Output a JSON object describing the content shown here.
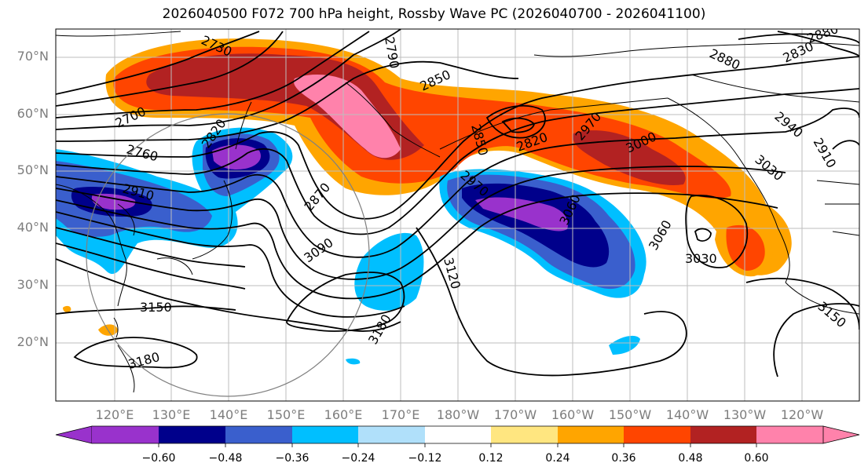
{
  "title": "2026040500 F072 700 hPa height, Rossby Wave PC (2026040700 - 2026041100)",
  "lat_labels": [
    "70°N",
    "60°N",
    "50°N",
    "40°N",
    "30°N",
    "20°N"
  ],
  "lon_labels": [
    "120°E",
    "130°E",
    "140°E",
    "150°E",
    "160°E",
    "170°E",
    "180°W",
    "170°W",
    "160°W",
    "150°W",
    "140°W",
    "130°W",
    "120°W"
  ],
  "contour_labels": [
    "2730",
    "2790",
    "2850",
    "2880",
    "2830",
    "2880",
    "2700",
    "2760",
    "2910",
    "2820",
    "2820",
    "2850",
    "2970",
    "2970",
    "3000",
    "2940",
    "2910",
    "3030",
    "2870",
    "3090",
    "3060",
    "3060",
    "3030",
    "3120",
    "3150",
    "3180",
    "3180",
    "3150"
  ],
  "colorbar": {
    "ticks": [
      "−0.60",
      "−0.48",
      "−0.36",
      "−0.24",
      "−0.12",
      "0.12",
      "0.24",
      "0.36",
      "0.48",
      "0.60"
    ],
    "colors": [
      "#9932cc",
      "#00008b",
      "#3a5fcd",
      "#00bfff",
      "#b0e0fa",
      "#ffffff",
      "#ffe680",
      "#ffa500",
      "#ff4500",
      "#b22222",
      "#ff82ab"
    ]
  },
  "legend": {
    "palette": {
      "neg4": "#9932cc",
      "neg3": "#00008b",
      "neg2": "#3a5fcd",
      "neg1": "#00bfff",
      "neg0": "#b0e0fa",
      "pos0": "#ffe680",
      "pos1": "#ffa500",
      "pos2": "#ff4500",
      "pos3": "#b22222",
      "pos4": "#ff82ab"
    }
  }
}
